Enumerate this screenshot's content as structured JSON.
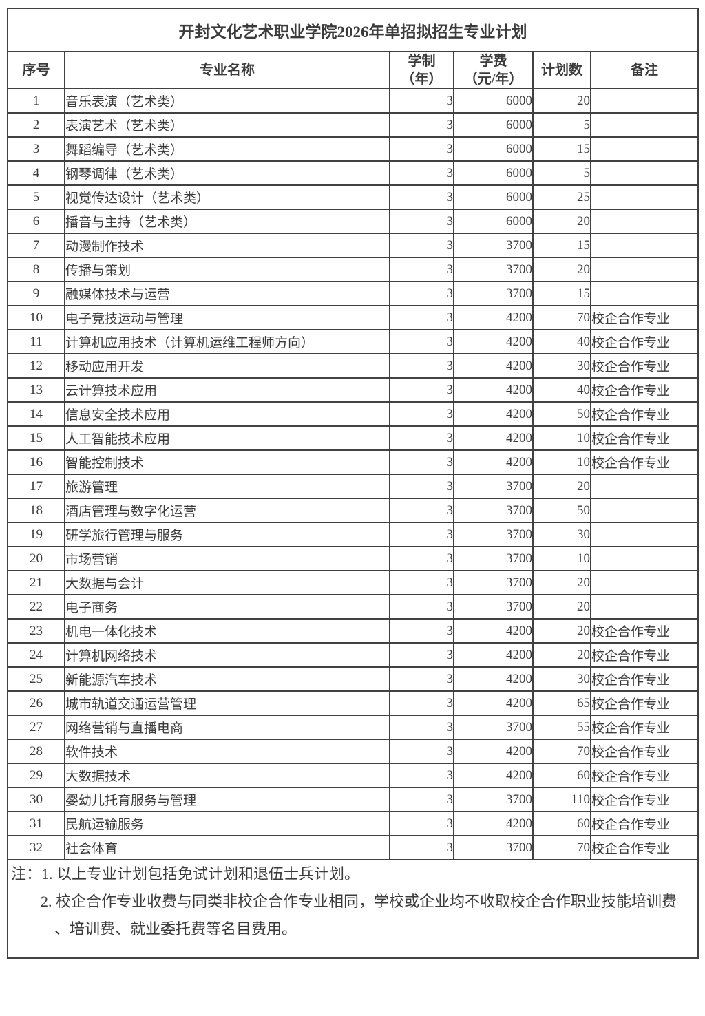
{
  "page": {
    "background_color": "#ffffff",
    "text_color": "#3b3b3b",
    "border_color": "#414141"
  },
  "table": {
    "title": "开封文化艺术职业学院2026年单招拟招生专业计划",
    "columns": [
      {
        "key": "no",
        "label": "序号",
        "label2": ""
      },
      {
        "key": "major",
        "label": "专业名称",
        "label2": ""
      },
      {
        "key": "years",
        "label": "学制",
        "label2": "（年）"
      },
      {
        "key": "fee",
        "label": "学费",
        "label2": "（元/年）"
      },
      {
        "key": "plan",
        "label": "计划数",
        "label2": ""
      },
      {
        "key": "note",
        "label": "备注",
        "label2": ""
      }
    ],
    "rows": [
      {
        "no": "1",
        "major": "音乐表演（艺术类）",
        "years": "3",
        "fee": "6000",
        "plan": "20",
        "note": ""
      },
      {
        "no": "2",
        "major": "表演艺术（艺术类）",
        "years": "3",
        "fee": "6000",
        "plan": "5",
        "note": ""
      },
      {
        "no": "3",
        "major": "舞蹈编导（艺术类）",
        "years": "3",
        "fee": "6000",
        "plan": "15",
        "note": ""
      },
      {
        "no": "4",
        "major": "钢琴调律（艺术类）",
        "years": "3",
        "fee": "6000",
        "plan": "5",
        "note": ""
      },
      {
        "no": "5",
        "major": "视觉传达设计（艺术类）",
        "years": "3",
        "fee": "6000",
        "plan": "25",
        "note": ""
      },
      {
        "no": "6",
        "major": "播音与主持（艺术类）",
        "years": "3",
        "fee": "6000",
        "plan": "20",
        "note": ""
      },
      {
        "no": "7",
        "major": "动漫制作技术",
        "years": "3",
        "fee": "3700",
        "plan": "15",
        "note": ""
      },
      {
        "no": "8",
        "major": "传播与策划",
        "years": "3",
        "fee": "3700",
        "plan": "20",
        "note": ""
      },
      {
        "no": "9",
        "major": "融媒体技术与运营",
        "years": "3",
        "fee": "3700",
        "plan": "15",
        "note": ""
      },
      {
        "no": "10",
        "major": "电子竞技运动与管理",
        "years": "3",
        "fee": "4200",
        "plan": "70",
        "note": "校企合作专业"
      },
      {
        "no": "11",
        "major": "计算机应用技术（计算机运维工程师方向）",
        "years": "3",
        "fee": "4200",
        "plan": "40",
        "note": "校企合作专业"
      },
      {
        "no": "12",
        "major": "移动应用开发",
        "years": "3",
        "fee": "4200",
        "plan": "30",
        "note": "校企合作专业"
      },
      {
        "no": "13",
        "major": "云计算技术应用",
        "years": "3",
        "fee": "4200",
        "plan": "40",
        "note": "校企合作专业"
      },
      {
        "no": "14",
        "major": "信息安全技术应用",
        "years": "3",
        "fee": "4200",
        "plan": "50",
        "note": "校企合作专业"
      },
      {
        "no": "15",
        "major": "人工智能技术应用",
        "years": "3",
        "fee": "4200",
        "plan": "10",
        "note": "校企合作专业"
      },
      {
        "no": "16",
        "major": "智能控制技术",
        "years": "3",
        "fee": "4200",
        "plan": "10",
        "note": "校企合作专业"
      },
      {
        "no": "17",
        "major": "旅游管理",
        "years": "3",
        "fee": "3700",
        "plan": "20",
        "note": ""
      },
      {
        "no": "18",
        "major": "酒店管理与数字化运营",
        "years": "3",
        "fee": "3700",
        "plan": "50",
        "note": ""
      },
      {
        "no": "19",
        "major": "研学旅行管理与服务",
        "years": "3",
        "fee": "3700",
        "plan": "30",
        "note": ""
      },
      {
        "no": "20",
        "major": "市场营销",
        "years": "3",
        "fee": "3700",
        "plan": "10",
        "note": ""
      },
      {
        "no": "21",
        "major": "大数据与会计",
        "years": "3",
        "fee": "3700",
        "plan": "20",
        "note": ""
      },
      {
        "no": "22",
        "major": "电子商务",
        "years": "3",
        "fee": "3700",
        "plan": "20",
        "note": ""
      },
      {
        "no": "23",
        "major": "机电一体化技术",
        "years": "3",
        "fee": "4200",
        "plan": "20",
        "note": "校企合作专业"
      },
      {
        "no": "24",
        "major": "计算机网络技术",
        "years": "3",
        "fee": "4200",
        "plan": "20",
        "note": "校企合作专业"
      },
      {
        "no": "25",
        "major": "新能源汽车技术",
        "years": "3",
        "fee": "4200",
        "plan": "30",
        "note": "校企合作专业"
      },
      {
        "no": "26",
        "major": "城市轨道交通运营管理",
        "years": "3",
        "fee": "4200",
        "plan": "65",
        "note": "校企合作专业"
      },
      {
        "no": "27",
        "major": "网络营销与直播电商",
        "years": "3",
        "fee": "3700",
        "plan": "55",
        "note": "校企合作专业"
      },
      {
        "no": "28",
        "major": "软件技术",
        "years": "3",
        "fee": "4200",
        "plan": "70",
        "note": "校企合作专业"
      },
      {
        "no": "29",
        "major": "大数据技术",
        "years": "3",
        "fee": "4200",
        "plan": "60",
        "note": "校企合作专业"
      },
      {
        "no": "30",
        "major": "婴幼儿托育服务与管理",
        "years": "3",
        "fee": "3700",
        "plan": "110",
        "note": "校企合作专业"
      },
      {
        "no": "31",
        "major": "民航运输服务",
        "years": "3",
        "fee": "4200",
        "plan": "60",
        "note": "校企合作专业"
      },
      {
        "no": "32",
        "major": "社会体育",
        "years": "3",
        "fee": "3700",
        "plan": "70",
        "note": "校企合作专业"
      }
    ],
    "notes": {
      "line1": "注：1. 以上专业计划包括免试计划和退伍士兵计划。",
      "line2": "2. 校企合作专业收费与同类非校企合作专业相同，学校或企业均不收取校企合作职业技能培训费",
      "line3": "、培训费、就业委托费等名目费用。"
    }
  }
}
